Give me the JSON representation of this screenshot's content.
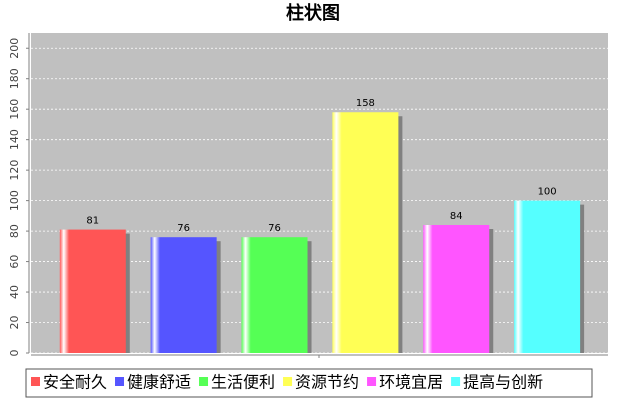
{
  "chart_data": {
    "type": "bar",
    "title": "柱状图",
    "categories": [
      null
    ],
    "series": [
      {
        "name": "安全耐久",
        "color": "#ff5555",
        "values": [
          81
        ]
      },
      {
        "name": "健康舒适",
        "color": "#5555ff",
        "values": [
          76
        ]
      },
      {
        "name": "生活便利",
        "color": "#55ff55",
        "values": [
          76
        ]
      },
      {
        "name": "资源节约",
        "color": "#ffff55",
        "values": [
          158
        ]
      },
      {
        "name": "环境宜居",
        "color": "#ff55ff",
        "values": [
          84
        ]
      },
      {
        "name": "提高与创新",
        "color": "#55ffff",
        "values": [
          100
        ]
      }
    ],
    "ylim": [
      0,
      210
    ],
    "yticks": [
      0,
      20,
      40,
      60,
      80,
      100,
      120,
      140,
      160,
      180,
      200
    ],
    "grid": true
  }
}
